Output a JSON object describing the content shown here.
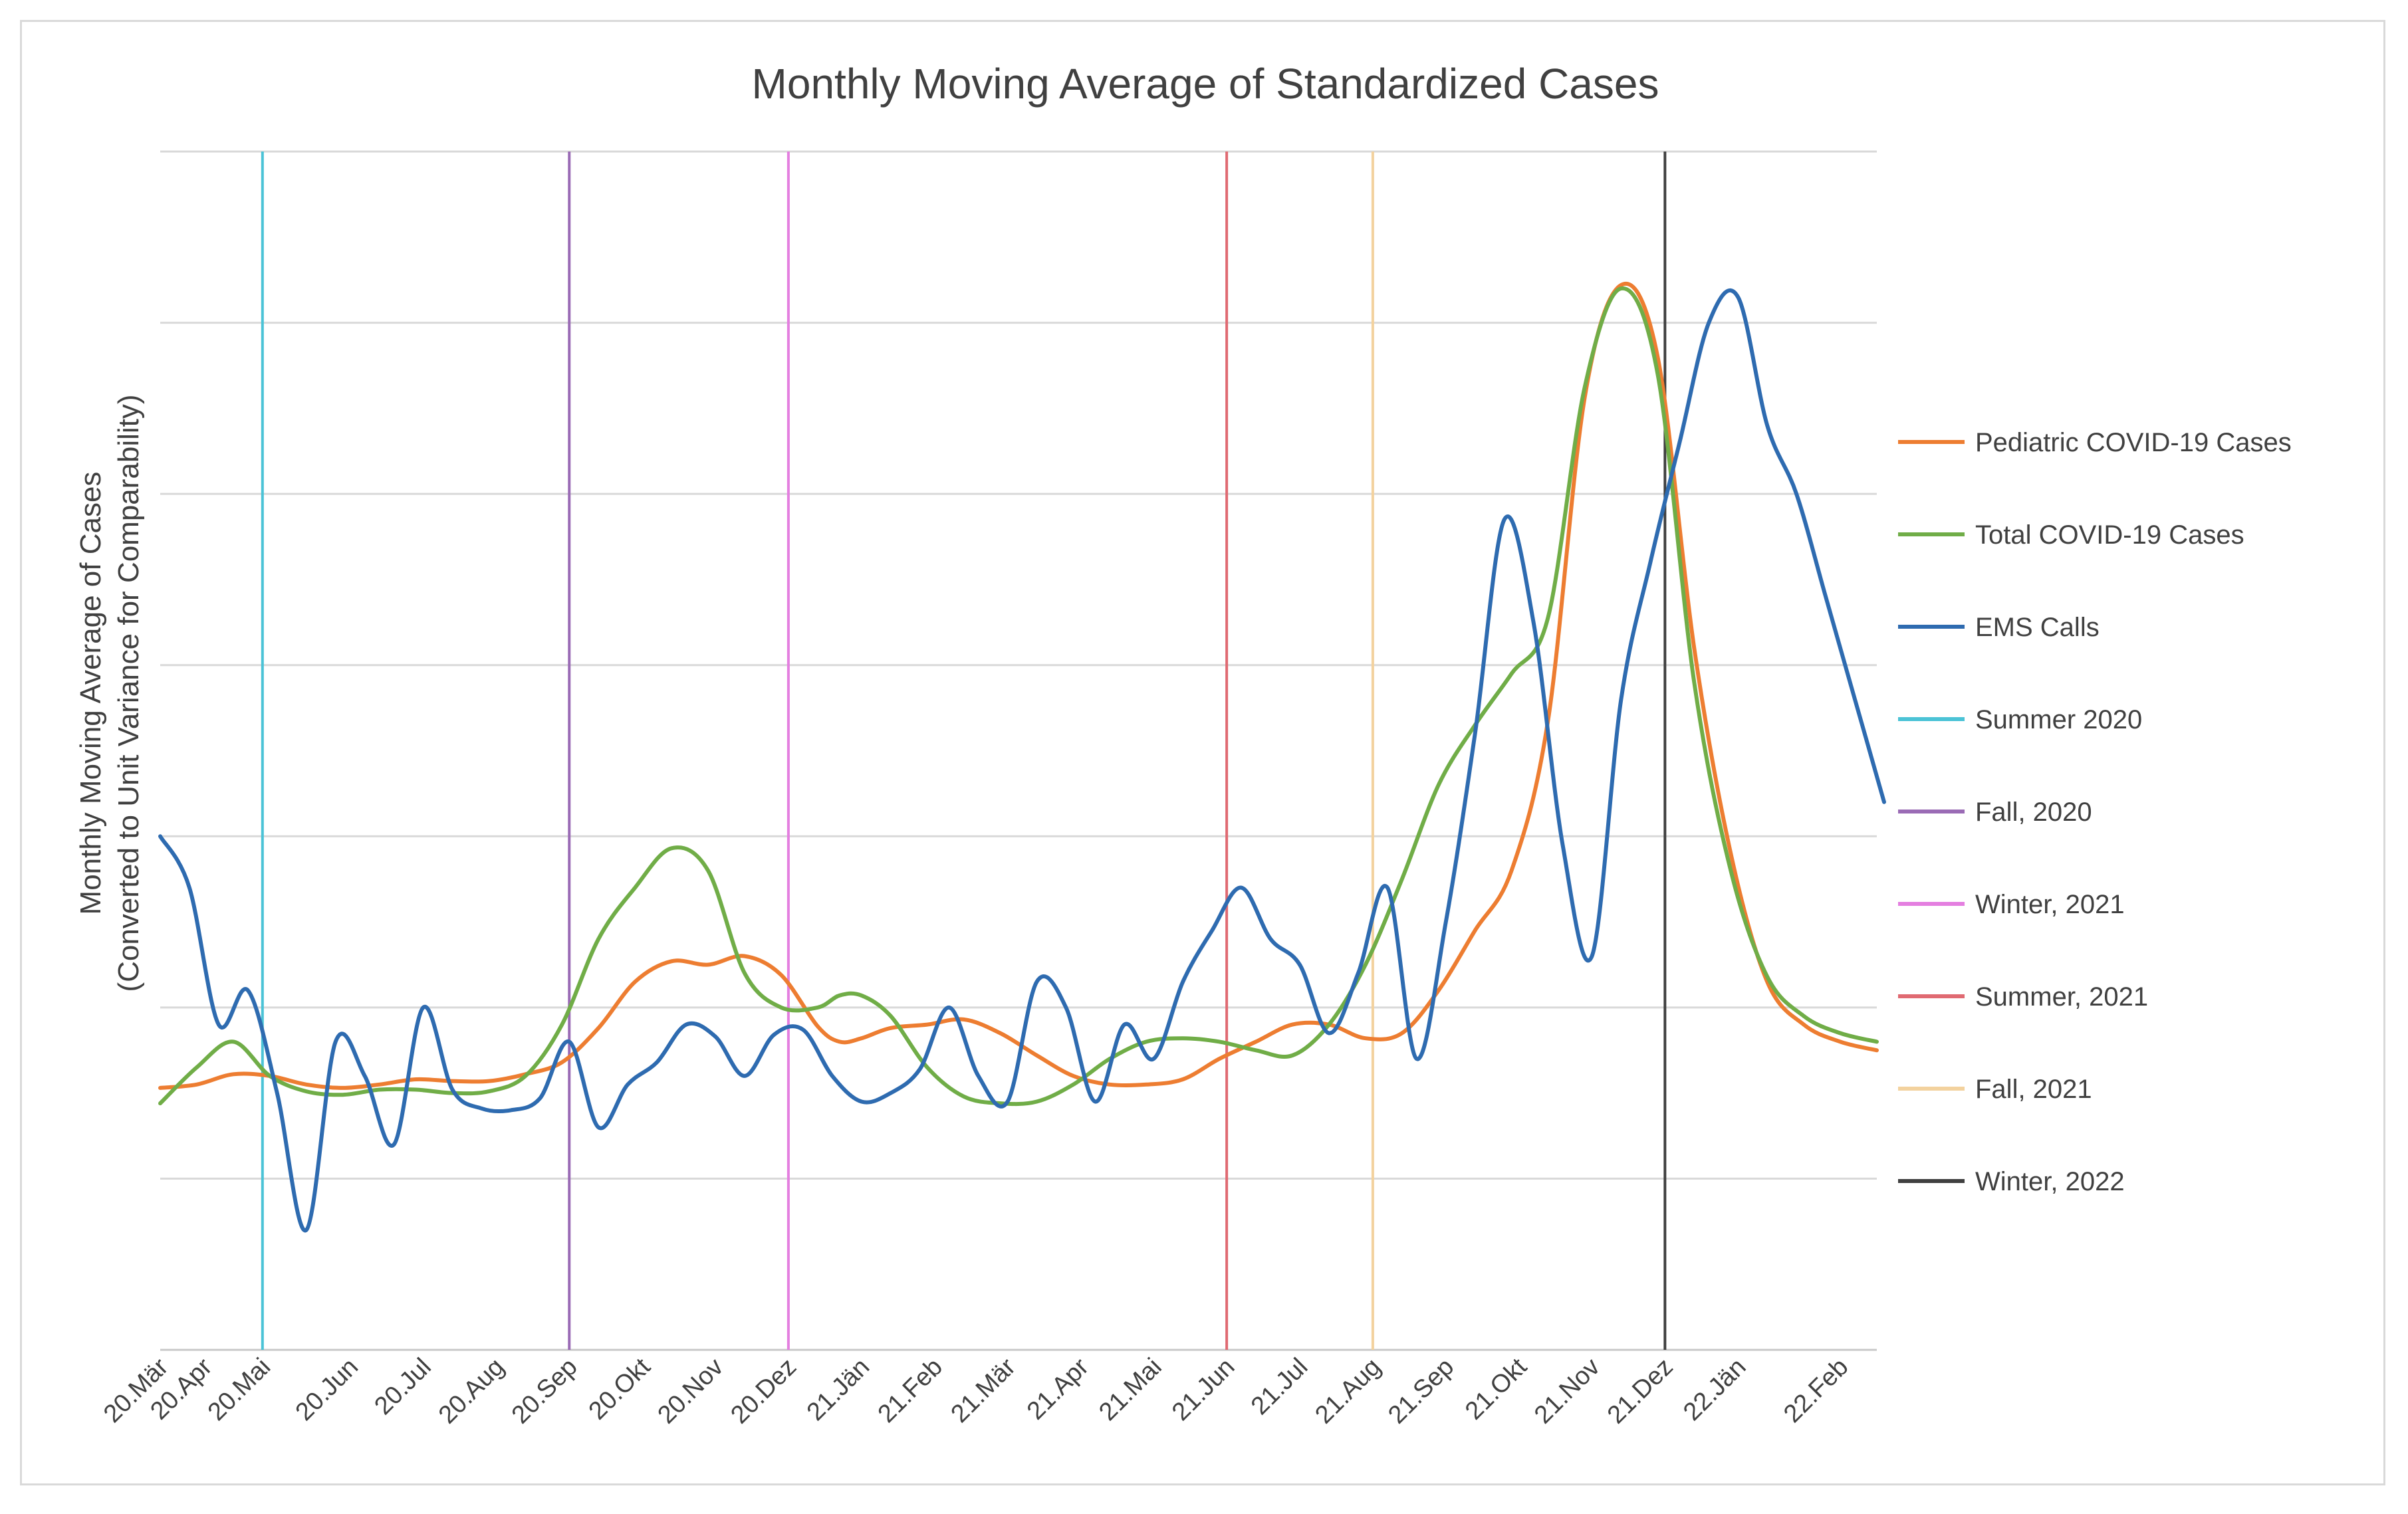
{
  "chart_data": {
    "type": "line",
    "title": "Monthly Moving Average of Standardized Cases",
    "xlabel": "",
    "ylabel_lines": [
      "Monthly Moving Average of Cases",
      "(Converted to Unit Variance for Comparability)"
    ],
    "ylim": [
      -3,
      4
    ],
    "y_gridlines": [
      -3,
      -2,
      -1,
      0,
      1,
      2,
      3,
      4
    ],
    "y_tick_labels_shown": false,
    "xlim": [
      0,
      23.5
    ],
    "categories": [
      "20.Mär",
      "20.Apr",
      "20.Mai",
      "20.Jun",
      "20.Jul",
      "20.Aug",
      "20.Sep",
      "20.Okt",
      "20.Nov",
      "20.Dez",
      "21.Jän",
      "21.Feb",
      "21.Mär",
      "21.Apr",
      "21.Mai",
      "21.Jun",
      "21.Jul",
      "21.Aug",
      "21.Sep",
      "21.Okt",
      "21.Nov",
      "21.Dez",
      "22.Jän",
      "22.Feb"
    ],
    "tick_positions": [
      0,
      0.6,
      1.4,
      2.6,
      3.6,
      4.6,
      5.6,
      6.6,
      7.6,
      8.6,
      9.6,
      10.6,
      11.6,
      12.6,
      13.6,
      14.6,
      15.6,
      16.6,
      17.6,
      18.6,
      19.6,
      20.6,
      21.6,
      23.0
    ],
    "series": [
      {
        "name": "Pediatric COVID-19 Cases",
        "color": "#ED7D31",
        "x": [
          0,
          0.5,
          1,
          1.5,
          2,
          2.5,
          3,
          3.5,
          4,
          4.5,
          5,
          5.5,
          6,
          6.5,
          7,
          7.5,
          8,
          8.5,
          9,
          9.3,
          9.6,
          10,
          10.5,
          11,
          11.5,
          12,
          12.5,
          13,
          13.5,
          14,
          14.5,
          15,
          15.5,
          16,
          16.5,
          17,
          17.5,
          18,
          18.5,
          19,
          19.5,
          20,
          20.5,
          21,
          21.5,
          22,
          22.5,
          23,
          23.5
        ],
        "values": [
          -1.47,
          -1.45,
          -1.39,
          -1.4,
          -1.45,
          -1.47,
          -1.45,
          -1.42,
          -1.43,
          -1.43,
          -1.39,
          -1.32,
          -1.12,
          -0.85,
          -0.73,
          -0.75,
          -0.7,
          -0.81,
          -1.11,
          -1.2,
          -1.18,
          -1.12,
          -1.1,
          -1.07,
          -1.15,
          -1.28,
          -1.4,
          -1.45,
          -1.45,
          -1.42,
          -1.3,
          -1.2,
          -1.1,
          -1.1,
          -1.18,
          -1.15,
          -0.9,
          -0.55,
          -0.2,
          0.68,
          2.56,
          3.22,
          2.8,
          1.1,
          -0.1,
          -0.85,
          -1.1,
          -1.2,
          -1.25
        ]
      },
      {
        "name": "Total COVID-19 Cases",
        "color": "#70AD47",
        "x": [
          0,
          0.5,
          1,
          1.5,
          2,
          2.5,
          3,
          3.5,
          4,
          4.5,
          5,
          5.5,
          6,
          6.5,
          7,
          7.5,
          8,
          8.5,
          9,
          9.3,
          9.6,
          10,
          10.5,
          11,
          11.5,
          12,
          12.5,
          13,
          13.5,
          14,
          14.5,
          15,
          15.5,
          16,
          16.5,
          17,
          17.5,
          18,
          18.5,
          19,
          19.5,
          20,
          20.5,
          21,
          21.5,
          22,
          22.5,
          23,
          23.5
        ],
        "values": [
          -1.56,
          -1.35,
          -1.2,
          -1.4,
          -1.49,
          -1.51,
          -1.48,
          -1.48,
          -1.5,
          -1.49,
          -1.4,
          -1.1,
          -0.6,
          -0.3,
          -0.07,
          -0.2,
          -0.8,
          -1.0,
          -1.0,
          -0.93,
          -0.93,
          -1.05,
          -1.35,
          -1.52,
          -1.56,
          -1.55,
          -1.45,
          -1.3,
          -1.2,
          -1.18,
          -1.2,
          -1.25,
          -1.28,
          -1.1,
          -0.75,
          -0.25,
          0.3,
          0.65,
          0.95,
          1.28,
          2.62,
          3.2,
          2.7,
          0.9,
          -0.2,
          -0.82,
          -1.05,
          -1.15,
          -1.2
        ]
      },
      {
        "name": "EMS Calls",
        "color": "#2E6BB0",
        "x": [
          0,
          0.4,
          0.8,
          1.2,
          1.6,
          2.0,
          2.4,
          2.8,
          3.2,
          3.6,
          4.0,
          4.4,
          4.8,
          5.2,
          5.6,
          6.0,
          6.4,
          6.8,
          7.2,
          7.6,
          8.0,
          8.4,
          8.8,
          9.2,
          9.6,
          10.0,
          10.4,
          10.8,
          11.2,
          11.6,
          12.0,
          12.4,
          12.8,
          13.2,
          13.6,
          14.0,
          14.4,
          14.8,
          15.2,
          15.6,
          16.0,
          16.4,
          16.8,
          17.2,
          17.6,
          18.0,
          18.4,
          18.8,
          19.2,
          19.6,
          20.0,
          20.4,
          20.8,
          21.2,
          21.6,
          22.0,
          22.4,
          22.8,
          23.2,
          23.6
        ],
        "values": [
          0.0,
          -0.3,
          -1.1,
          -0.9,
          -1.5,
          -2.3,
          -1.2,
          -1.4,
          -1.8,
          -1.0,
          -1.48,
          -1.59,
          -1.6,
          -1.53,
          -1.2,
          -1.7,
          -1.45,
          -1.32,
          -1.1,
          -1.17,
          -1.4,
          -1.16,
          -1.13,
          -1.4,
          -1.55,
          -1.5,
          -1.36,
          -1.0,
          -1.4,
          -1.55,
          -0.85,
          -1.0,
          -1.55,
          -1.1,
          -1.3,
          -0.85,
          -0.55,
          -0.3,
          -0.6,
          -0.75,
          -1.15,
          -0.8,
          -0.3,
          -1.3,
          -0.5,
          0.6,
          1.85,
          1.25,
          -0.05,
          -0.7,
          0.8,
          1.6,
          2.3,
          3.0,
          3.15,
          2.4,
          2.0,
          1.4,
          0.8,
          0.2
        ]
      }
    ],
    "vertical_markers": [
      {
        "name": "Summer 2020",
        "x": 1.4,
        "color": "#4BC3D6"
      },
      {
        "name": "Fall, 2020",
        "x": 5.6,
        "color": "#9A6BB5"
      },
      {
        "name": "Winter, 2021",
        "x": 8.6,
        "color": "#E47FE0"
      },
      {
        "name": "Summer, 2021",
        "x": 14.6,
        "color": "#E06A72"
      },
      {
        "name": "Fall, 2021",
        "x": 16.6,
        "color": "#F3D29E"
      },
      {
        "name": "Winter, 2022",
        "x": 20.6,
        "color": "#404040"
      }
    ],
    "legend": {
      "placement": "right",
      "entries": [
        {
          "label": "Pediatric COVID-19 Cases",
          "color": "#ED7D31"
        },
        {
          "label": "Total COVID-19 Cases",
          "color": "#70AD47"
        },
        {
          "label": "EMS Calls",
          "color": "#2E6BB0"
        },
        {
          "label": "Summer 2020",
          "color": "#4BC3D6"
        },
        {
          "label": "Fall, 2020",
          "color": "#9A6BB5"
        },
        {
          "label": "Winter, 2021",
          "color": "#E47FE0"
        },
        {
          "label": "Summer, 2021",
          "color": "#E06A72"
        },
        {
          "label": "Fall, 2021",
          "color": "#F3D29E"
        },
        {
          "label": "Winter, 2022",
          "color": "#404040"
        }
      ]
    },
    "grid": true
  }
}
